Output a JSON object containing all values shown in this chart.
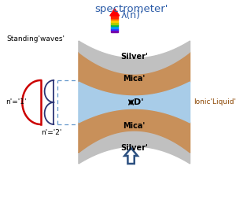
{
  "title": "spectrometer'",
  "title_color": "#2c5ca8",
  "bg_color": "#ffffff",
  "silver_color": "#c0c0c0",
  "mica_color": "#c8905a",
  "liquid_color": "#a8cce8",
  "arrow_up_color": "#2c5080",
  "standing_waves_label": "Standing'waves'",
  "n1_label": "n'='1'",
  "n2_label": "n'='2'",
  "silver_label": "Silver'",
  "mica_label": "Mica'",
  "liquid_label": "Ionic'Liquid'",
  "D_label": "D'",
  "lambda_label": "λ(n)'",
  "red_wave_color": "#cc0000",
  "blue_wave_color": "#2c3575",
  "dashed_line_color": "#6699cc",
  "spectrum_colors": [
    "#7700aa",
    "#3333ff",
    "#0099ff",
    "#00bb44",
    "#aacc00",
    "#ffcc00",
    "#ff6600",
    "#ff2200"
  ]
}
